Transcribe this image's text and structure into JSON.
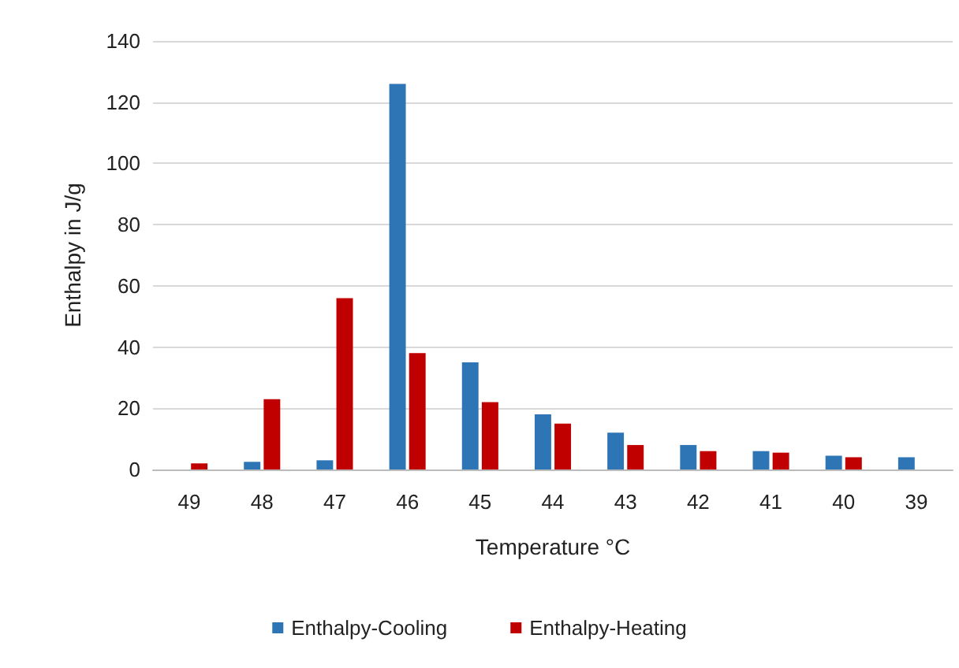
{
  "chart_data": {
    "type": "bar",
    "xlabel": "Temperature °C",
    "ylabel": "Enthalpy in J/g",
    "categories": [
      "49",
      "48",
      "47",
      "46",
      "45",
      "44",
      "43",
      "42",
      "41",
      "40",
      "39"
    ],
    "series": [
      {
        "name": "Enthalpy-Cooling",
        "color": "#2e75b6",
        "values": [
          null,
          2.5,
          3,
          126,
          35,
          18,
          12,
          8,
          6,
          4.5,
          4
        ]
      },
      {
        "name": "Enthalpy-Heating",
        "color": "#c00000",
        "values": [
          2,
          23,
          56,
          38,
          22,
          15,
          8,
          6,
          5.5,
          4,
          null
        ]
      }
    ],
    "ylim": [
      0,
      140
    ],
    "yticks": [
      0,
      20,
      40,
      60,
      80,
      100,
      120,
      140
    ],
    "grid": "y",
    "legend": "bottom"
  }
}
